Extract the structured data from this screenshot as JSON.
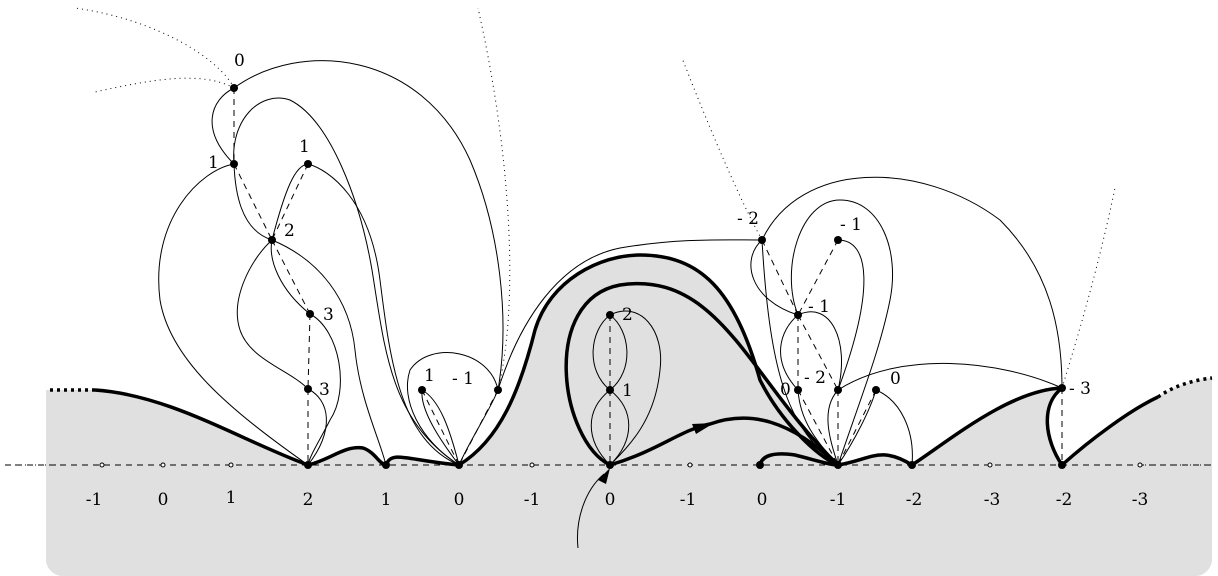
{
  "colors": {
    "shade": "#e0e0e0",
    "ink": "#000000",
    "background": "#ffffff"
  },
  "axis_labels": [
    "-1",
    "0",
    "1",
    "2",
    "1",
    "0",
    "-1",
    "0",
    "-1",
    "0",
    "-1",
    "-2",
    "-3",
    "-2",
    "-3"
  ],
  "node_labels": [
    "0",
    "1",
    "1",
    "2",
    "3",
    "3",
    "1",
    "- 1",
    "2",
    "1",
    "- 2",
    "- 1",
    "- 1",
    "0",
    "- 2",
    "0",
    "- 3"
  ]
}
